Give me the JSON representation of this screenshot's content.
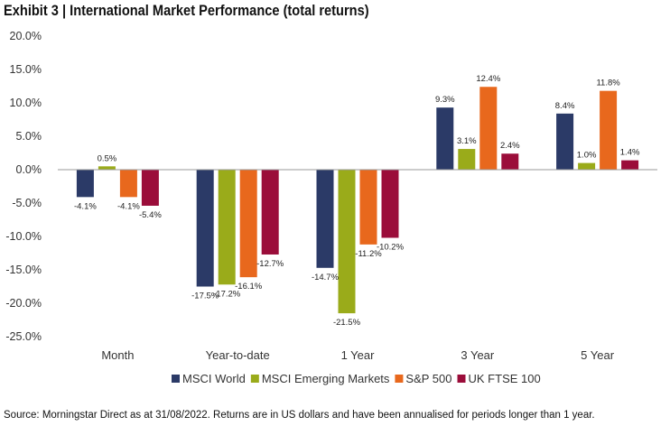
{
  "title": "Exhibit 3 | International Market Performance (total returns)",
  "footnote": "Source: Morningstar Direct as at 31/08/2022. Returns are in US dollars and have been annualised for periods longer than 1 year.",
  "chart_data": {
    "type": "bar",
    "title": "Exhibit 3 | International Market Performance (total returns)",
    "xlabel": "",
    "ylabel": "",
    "ylim": [
      -25,
      20
    ],
    "yticks": [
      20,
      15,
      10,
      5,
      0,
      -5,
      -10,
      -15,
      -20,
      -25
    ],
    "ytick_labels": [
      "20.0%",
      "15.0%",
      "10.0%",
      "5.0%",
      "0.0%",
      "-5.0%",
      "-10.0%",
      "-15.0%",
      "-20.0%",
      "-25.0%"
    ],
    "grid": false,
    "legend_position": "bottom",
    "categories": [
      "Month",
      "Year-to-date",
      "1 Year",
      "3 Year",
      "5 Year"
    ],
    "series": [
      {
        "name": "MSCI World",
        "color": "#2b3a67",
        "values": [
          -4.1,
          -17.5,
          -14.7,
          9.3,
          8.4
        ],
        "labels": [
          "-4.1%",
          "-17.5%",
          "-14.7%",
          "9.3%",
          "8.4%"
        ]
      },
      {
        "name": "MSCI Emerging Markets",
        "color": "#9aab1a",
        "values": [
          0.5,
          -17.2,
          -21.5,
          3.1,
          1.0
        ],
        "labels": [
          "0.5%",
          "-17.2%",
          "-21.5%",
          "3.1%",
          "1.0%"
        ]
      },
      {
        "name": "S&P 500",
        "color": "#e8681d",
        "values": [
          -4.1,
          -16.1,
          -11.2,
          12.4,
          11.8
        ],
        "labels": [
          "-4.1%",
          "-16.1%",
          "-11.2%",
          "12.4%",
          "11.8%"
        ]
      },
      {
        "name": "UK FTSE 100",
        "color": "#9b0d3a",
        "values": [
          -5.4,
          -12.7,
          -10.2,
          2.4,
          1.4
        ],
        "labels": [
          "-5.4%",
          "-12.7%",
          "-10.2%",
          "2.4%",
          "1.4%"
        ]
      }
    ]
  }
}
